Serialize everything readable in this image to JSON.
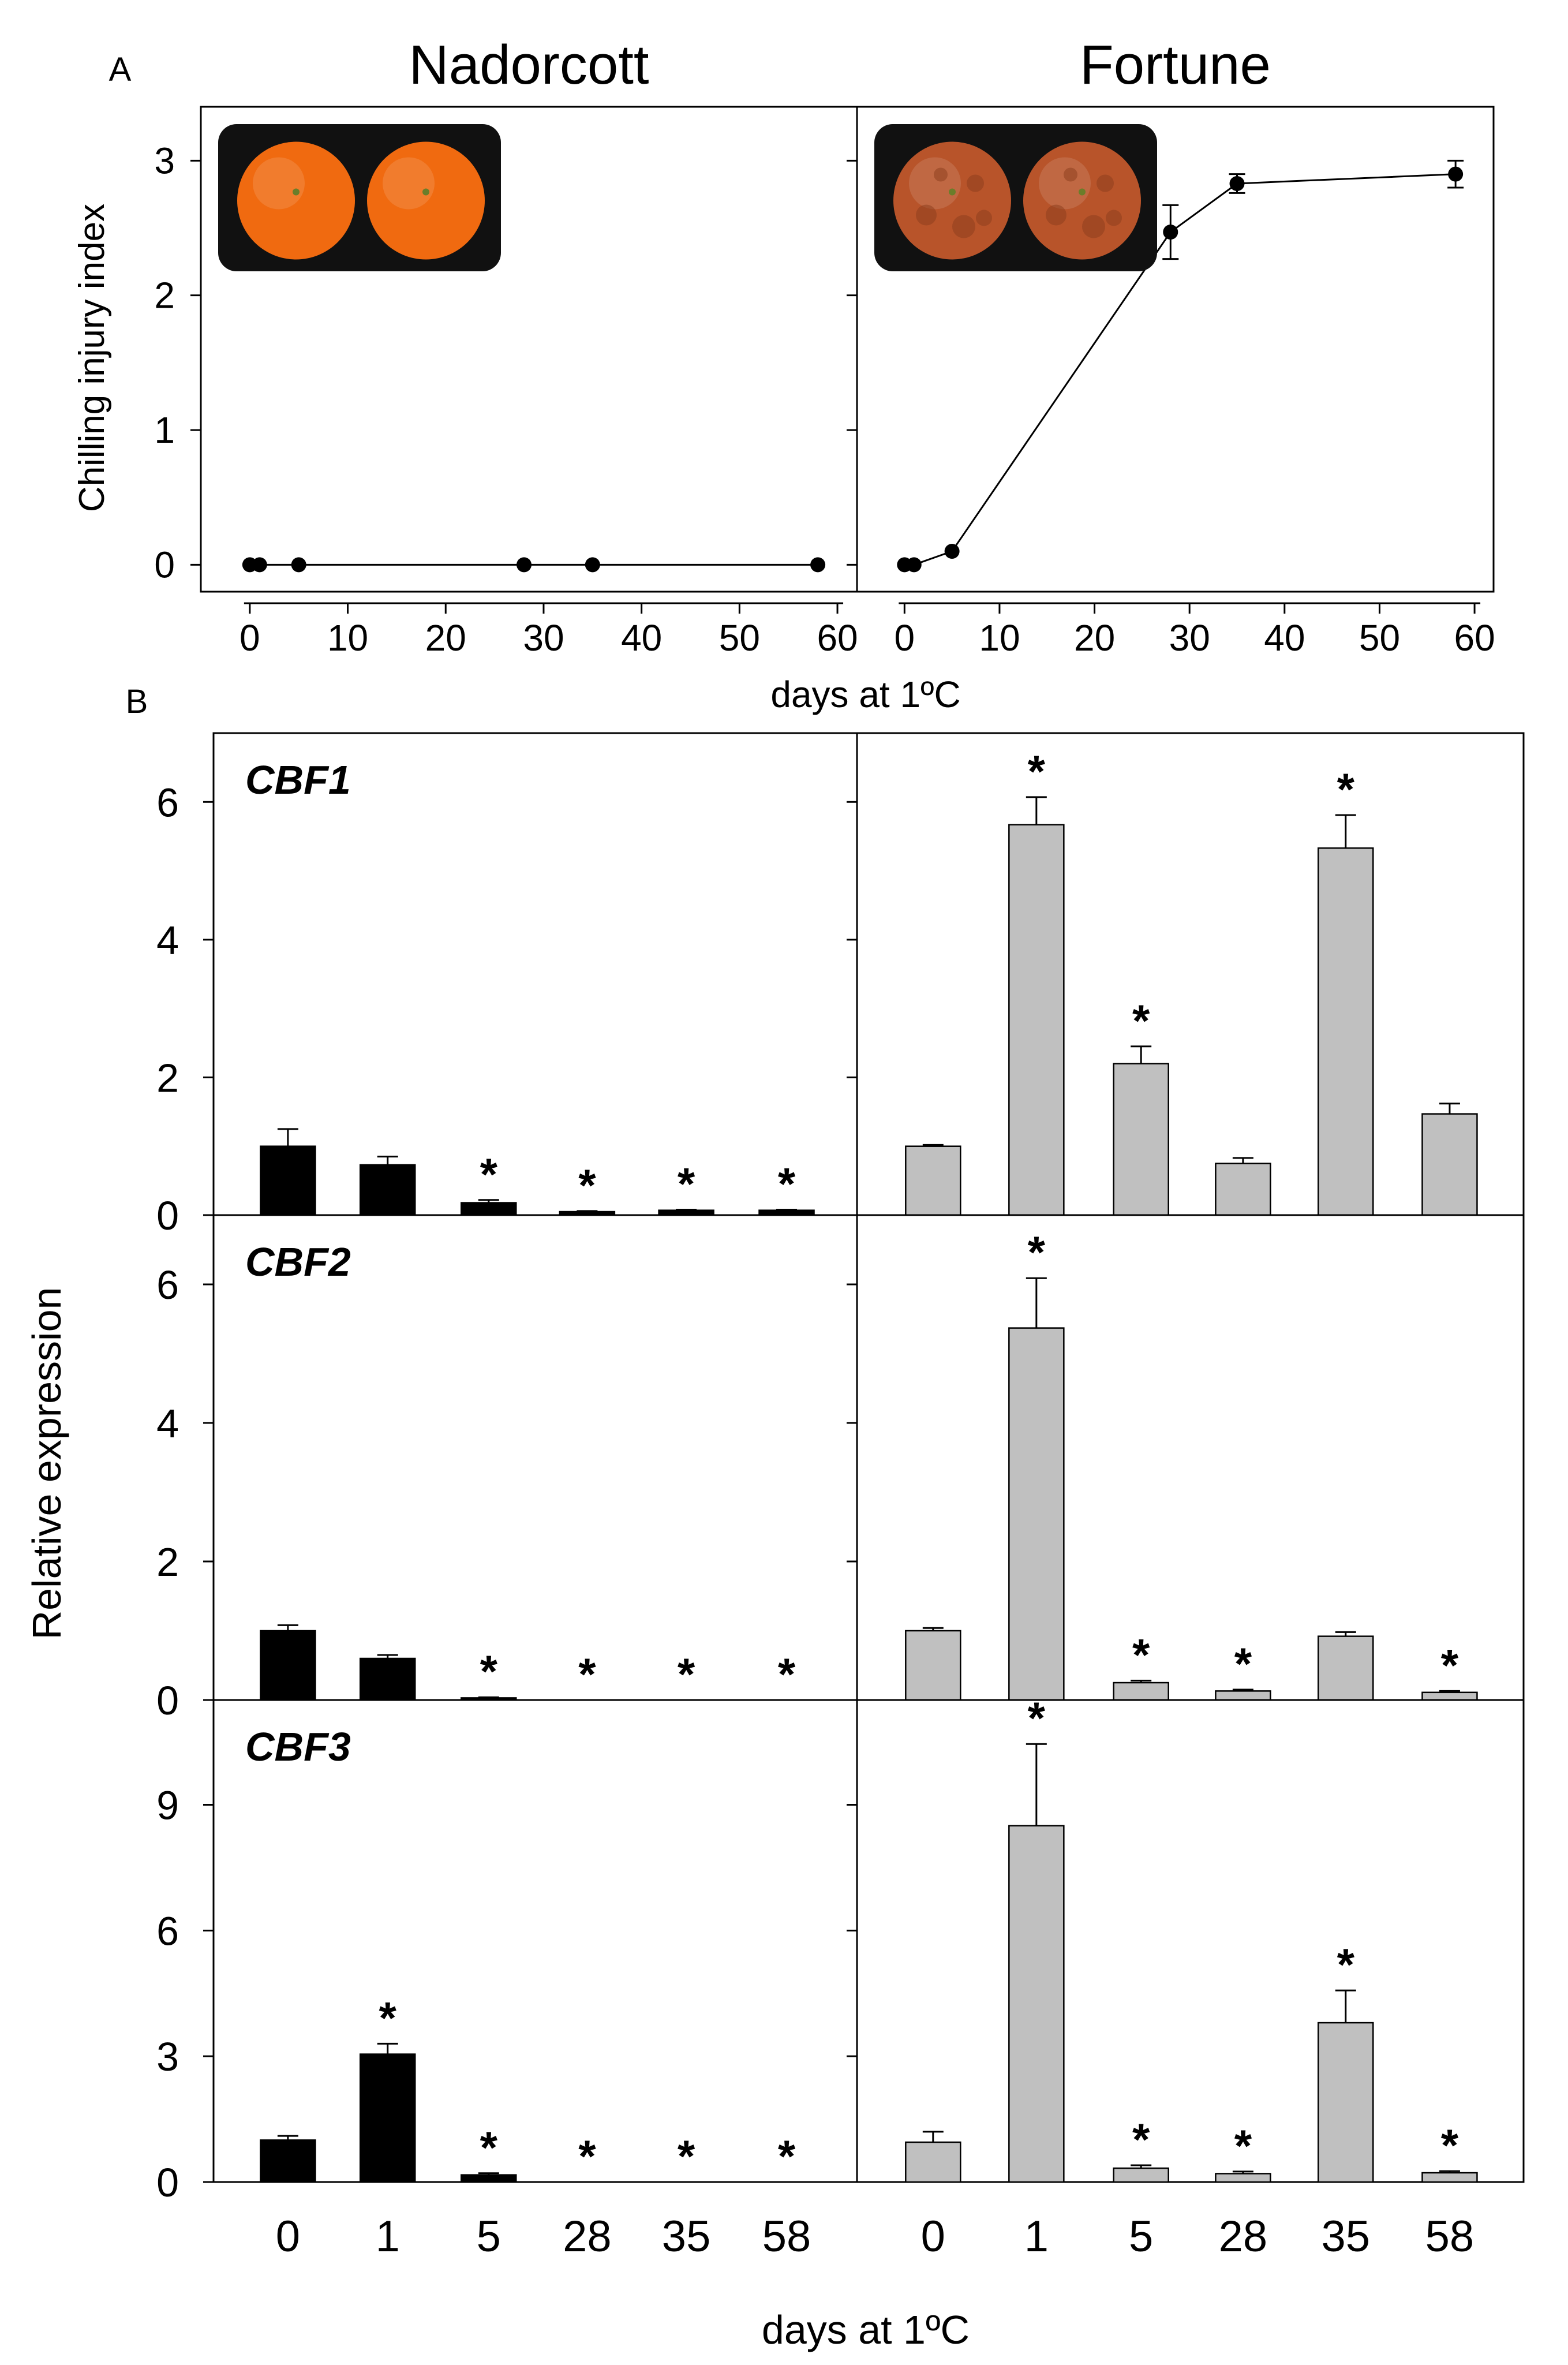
{
  "colors": {
    "axis": "#000000",
    "nadorcott_bar": "#000000",
    "fortune_bar": "#c0c0c0",
    "fruit_good": "#f06a10",
    "fruit_injured": "#b8542a",
    "photo_bg": "#111111"
  },
  "panel_a": {
    "label": "A",
    "ylabel": "Chilling injury index",
    "xlabel": "days at 1ºC",
    "photo_icons": [
      "orange-fruit-icon",
      "chilling-injured-fruit-icon"
    ]
  },
  "panel_b": {
    "label": "B",
    "ylabel": "Relative expression",
    "xlabel": "days at 1ºC"
  },
  "chart_data": [
    {
      "type": "line",
      "panel": "A",
      "title": "Nadorcott",
      "xlabel": "days at 1ºC",
      "ylabel": "Chilling injury index",
      "x": [
        0,
        1,
        5,
        28,
        35,
        58
      ],
      "y": [
        0,
        0,
        0,
        0,
        0,
        0
      ],
      "xlim": [
        -5,
        62
      ],
      "ylim": [
        -0.2,
        3.4
      ],
      "xticks": [
        0,
        10,
        20,
        30,
        40,
        50,
        60
      ],
      "yticks": [
        0,
        1,
        2,
        3
      ]
    },
    {
      "type": "line",
      "panel": "A",
      "title": "Fortune",
      "xlabel": "days at 1ºC",
      "ylabel": "Chilling injury index",
      "x": [
        0,
        1,
        5,
        28,
        35,
        58
      ],
      "y": [
        0,
        0,
        0.1,
        2.47,
        2.83,
        2.9
      ],
      "error": [
        0,
        0,
        0,
        0.2,
        0.07,
        0.1
      ],
      "xlim": [
        -5,
        62
      ],
      "ylim": [
        -0.2,
        3.4
      ],
      "xticks": [
        0,
        10,
        20,
        30,
        40,
        50,
        60
      ],
      "yticks": [
        0,
        1,
        2,
        3
      ]
    },
    {
      "type": "bar",
      "panel": "B",
      "gene": "CBF1",
      "cultivar": "Nadorcott",
      "categories": [
        "0",
        "1",
        "5",
        "28",
        "35",
        "58"
      ],
      "values": [
        1.0,
        0.73,
        0.18,
        0.05,
        0.07,
        0.07
      ],
      "error": [
        0.25,
        0.12,
        0.04,
        0.01,
        0.01,
        0.01
      ],
      "significant": [
        false,
        false,
        true,
        true,
        true,
        true
      ],
      "ylim": [
        0,
        7
      ],
      "yticks": [
        0,
        2,
        4,
        6
      ]
    },
    {
      "type": "bar",
      "panel": "B",
      "gene": "CBF1",
      "cultivar": "Fortune",
      "categories": [
        "0",
        "1",
        "5",
        "28",
        "35",
        "58"
      ],
      "values": [
        1.0,
        5.67,
        2.2,
        0.75,
        5.33,
        1.47
      ],
      "error": [
        0.02,
        0.4,
        0.25,
        0.08,
        0.48,
        0.15
      ],
      "significant": [
        false,
        true,
        true,
        false,
        true,
        false
      ],
      "ylim": [
        0,
        7
      ],
      "yticks": [
        0,
        2,
        4,
        6
      ]
    },
    {
      "type": "bar",
      "panel": "B",
      "gene": "CBF2",
      "cultivar": "Nadorcott",
      "categories": [
        "0",
        "1",
        "5",
        "28",
        "35",
        "58"
      ],
      "values": [
        1.0,
        0.6,
        0.03,
        0.0,
        0.0,
        0.0
      ],
      "error": [
        0.08,
        0.05,
        0.01,
        0,
        0,
        0
      ],
      "significant": [
        false,
        false,
        true,
        true,
        true,
        true
      ],
      "ylim": [
        0,
        7
      ],
      "yticks": [
        0,
        2,
        4,
        6
      ]
    },
    {
      "type": "bar",
      "panel": "B",
      "gene": "CBF2",
      "cultivar": "Fortune",
      "categories": [
        "0",
        "1",
        "5",
        "28",
        "35",
        "58"
      ],
      "values": [
        1.0,
        5.37,
        0.25,
        0.13,
        0.92,
        0.11
      ],
      "error": [
        0.04,
        0.72,
        0.03,
        0.02,
        0.06,
        0.02
      ],
      "significant": [
        false,
        true,
        true,
        true,
        false,
        true
      ],
      "ylim": [
        0,
        7
      ],
      "yticks": [
        0,
        2,
        4,
        6
      ]
    },
    {
      "type": "bar",
      "panel": "B",
      "gene": "CBF3",
      "cultivar": "Nadorcott",
      "categories": [
        "0",
        "1",
        "5",
        "28",
        "35",
        "58"
      ],
      "values": [
        1.0,
        3.05,
        0.17,
        0.0,
        0.0,
        0.0
      ],
      "error": [
        0.1,
        0.25,
        0.04,
        0,
        0,
        0
      ],
      "significant": [
        false,
        true,
        true,
        true,
        true,
        true
      ],
      "ylim": [
        0,
        11.5
      ],
      "yticks": [
        0,
        3,
        6,
        9
      ],
      "xlabel": "days at 1ºC"
    },
    {
      "type": "bar",
      "panel": "B",
      "gene": "CBF3",
      "cultivar": "Fortune",
      "categories": [
        "0",
        "1",
        "5",
        "28",
        "35",
        "58"
      ],
      "values": [
        0.95,
        8.5,
        0.33,
        0.2,
        3.8,
        0.22
      ],
      "error": [
        0.25,
        1.95,
        0.07,
        0.05,
        0.77,
        0.04
      ],
      "significant": [
        false,
        true,
        true,
        true,
        true,
        true
      ],
      "ylim": [
        0,
        11.5
      ],
      "yticks": [
        0,
        3,
        6,
        9
      ],
      "xlabel": "days at 1ºC"
    }
  ]
}
